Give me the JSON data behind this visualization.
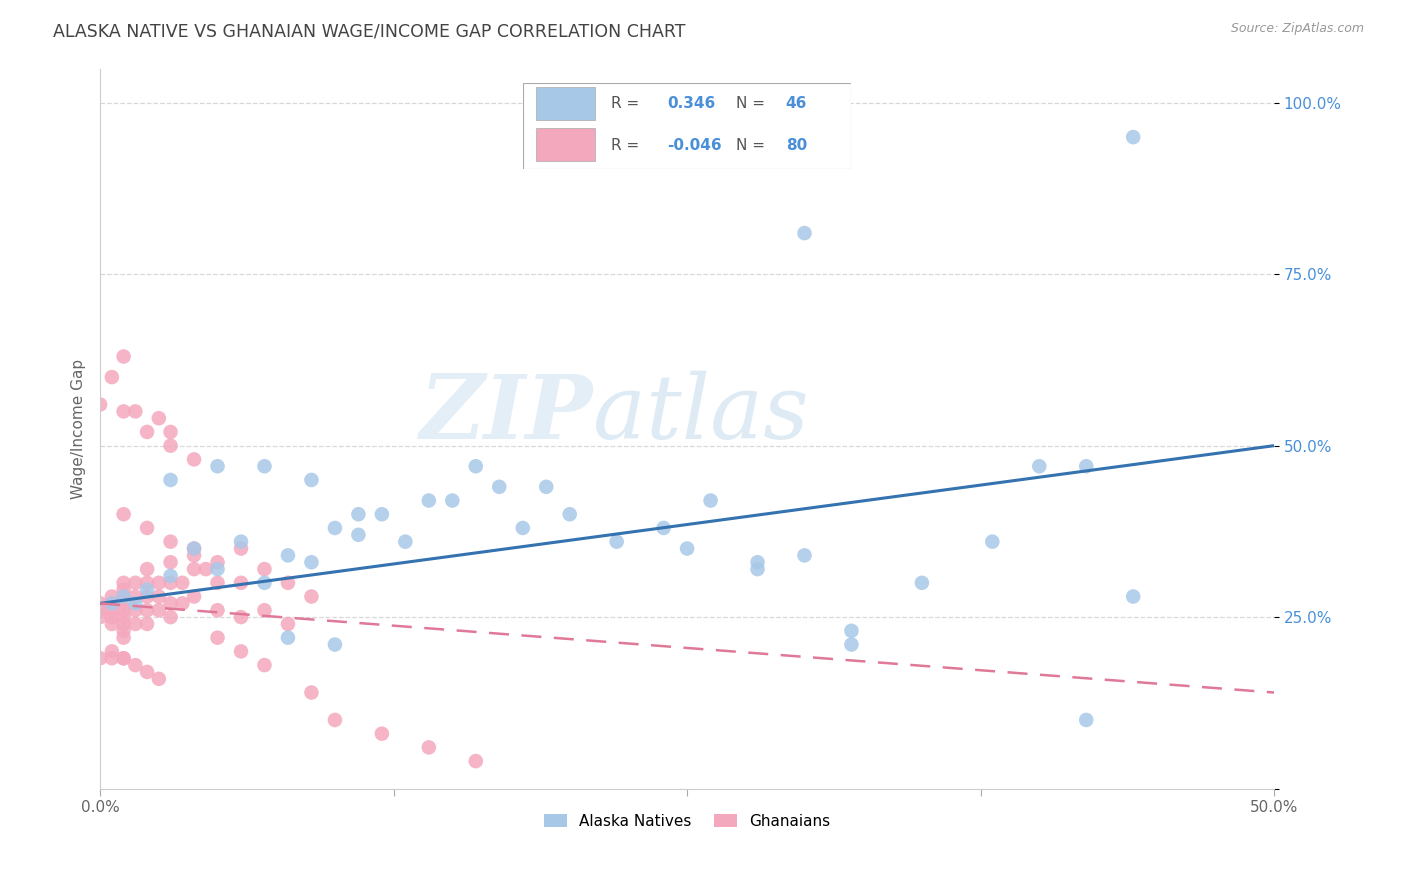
{
  "title": "ALASKA NATIVE VS GHANAIAN WAGE/INCOME GAP CORRELATION CHART",
  "source": "Source: ZipAtlas.com",
  "ylabel": "Wage/Income Gap",
  "x_lim": [
    0.0,
    0.5
  ],
  "y_lim": [
    0.0,
    1.05
  ],
  "alaska_R": 0.346,
  "alaska_N": 46,
  "ghanaian_R": -0.046,
  "ghanaian_N": 80,
  "alaska_color": "#a8c8e8",
  "ghanaian_color": "#f4a8be",
  "alaska_line_color": "#3572b0",
  "ghanaian_line_color": "#e07898",
  "legend_text_color": "#4a90d9",
  "legend_r_label_color": "#555555",
  "ytick_color": "#4a90d9",
  "axis_color": "#cccccc",
  "title_color": "#444444",
  "source_color": "#999999",
  "watermark": "ZIPatlas",
  "alaska_line_start_y": 0.27,
  "alaska_line_end_y": 0.5,
  "ghanaian_line_start_y": 0.27,
  "ghanaian_line_end_y": 0.14,
  "alaska_x": [
    0.005,
    0.01,
    0.015,
    0.02,
    0.03,
    0.04,
    0.05,
    0.06,
    0.07,
    0.08,
    0.09,
    0.1,
    0.11,
    0.12,
    0.13,
    0.15,
    0.17,
    0.18,
    0.2,
    0.22,
    0.24,
    0.26,
    0.28,
    0.3,
    0.32,
    0.35,
    0.38,
    0.4,
    0.42,
    0.44,
    0.03,
    0.05,
    0.07,
    0.09,
    0.11,
    0.14,
    0.16,
    0.19,
    0.08,
    0.1,
    0.25,
    0.28,
    0.32,
    0.3,
    0.44,
    0.42
  ],
  "alaska_y": [
    0.27,
    0.28,
    0.27,
    0.29,
    0.31,
    0.35,
    0.32,
    0.36,
    0.3,
    0.34,
    0.33,
    0.38,
    0.37,
    0.4,
    0.36,
    0.42,
    0.44,
    0.38,
    0.4,
    0.36,
    0.38,
    0.42,
    0.32,
    0.34,
    0.23,
    0.3,
    0.36,
    0.47,
    0.47,
    0.28,
    0.45,
    0.47,
    0.47,
    0.45,
    0.4,
    0.42,
    0.47,
    0.44,
    0.22,
    0.21,
    0.35,
    0.33,
    0.21,
    0.81,
    0.95,
    0.1
  ],
  "ghana_x": [
    0.0,
    0.0,
    0.0,
    0.005,
    0.005,
    0.005,
    0.005,
    0.005,
    0.01,
    0.01,
    0.01,
    0.01,
    0.01,
    0.01,
    0.01,
    0.01,
    0.01,
    0.015,
    0.015,
    0.015,
    0.015,
    0.02,
    0.02,
    0.02,
    0.02,
    0.02,
    0.025,
    0.025,
    0.025,
    0.03,
    0.03,
    0.03,
    0.03,
    0.035,
    0.035,
    0.04,
    0.04,
    0.04,
    0.045,
    0.05,
    0.05,
    0.05,
    0.06,
    0.06,
    0.06,
    0.07,
    0.07,
    0.08,
    0.08,
    0.09,
    0.0,
    0.005,
    0.01,
    0.01,
    0.015,
    0.02,
    0.025,
    0.03,
    0.03,
    0.04,
    0.0,
    0.005,
    0.01,
    0.005,
    0.01,
    0.015,
    0.02,
    0.025,
    0.01,
    0.02,
    0.03,
    0.04,
    0.05,
    0.06,
    0.07,
    0.09,
    0.1,
    0.12,
    0.14,
    0.16
  ],
  "ghana_y": [
    0.27,
    0.26,
    0.25,
    0.28,
    0.27,
    0.26,
    0.25,
    0.24,
    0.3,
    0.29,
    0.28,
    0.27,
    0.26,
    0.25,
    0.24,
    0.23,
    0.22,
    0.3,
    0.28,
    0.26,
    0.24,
    0.32,
    0.3,
    0.28,
    0.26,
    0.24,
    0.3,
    0.28,
    0.26,
    0.33,
    0.3,
    0.27,
    0.25,
    0.3,
    0.27,
    0.35,
    0.32,
    0.28,
    0.32,
    0.33,
    0.3,
    0.26,
    0.35,
    0.3,
    0.25,
    0.32,
    0.26,
    0.3,
    0.24,
    0.28,
    0.56,
    0.6,
    0.55,
    0.63,
    0.55,
    0.52,
    0.54,
    0.52,
    0.5,
    0.48,
    0.19,
    0.19,
    0.19,
    0.2,
    0.19,
    0.18,
    0.17,
    0.16,
    0.4,
    0.38,
    0.36,
    0.34,
    0.22,
    0.2,
    0.18,
    0.14,
    0.1,
    0.08,
    0.06,
    0.04
  ]
}
